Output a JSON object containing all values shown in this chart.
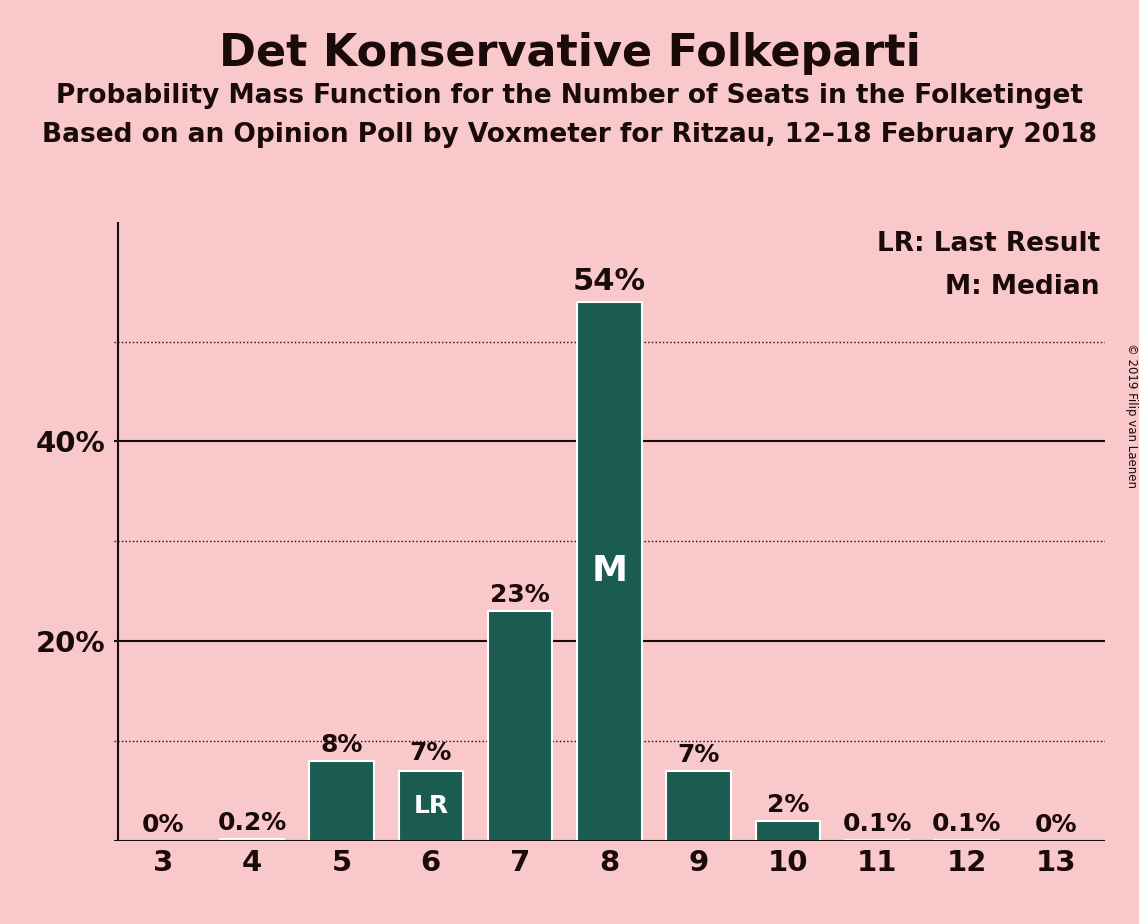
{
  "title": "Det Konservative Folkeparti",
  "subtitle1": "Probability Mass Function for the Number of Seats in the Folketinget",
  "subtitle2": "Based on an Opinion Poll by Voxmeter for Ritzau, 12–18 February 2018",
  "copyright": "© 2019 Filip van Laenen",
  "categories": [
    3,
    4,
    5,
    6,
    7,
    8,
    9,
    10,
    11,
    12,
    13
  ],
  "values": [
    0.0,
    0.2,
    8.0,
    7.0,
    23.0,
    54.0,
    7.0,
    2.0,
    0.1,
    0.1,
    0.0
  ],
  "labels": [
    "0%",
    "0.2%",
    "8%",
    "7%",
    "23%",
    "54%",
    "7%",
    "2%",
    "0.1%",
    "0.1%",
    "0%"
  ],
  "bar_color": "#1a5c50",
  "background_color": "#f9c8cb",
  "text_color": "#1a0a0a",
  "last_result_index": 3,
  "median_index": 5,
  "legend_lr": "LR: Last Result",
  "legend_m": "M: Median",
  "yticks_solid": [
    20,
    40
  ],
  "yticks_dotted": [
    10,
    30,
    50
  ],
  "ylim": [
    0,
    62
  ],
  "title_fontsize": 32,
  "subtitle_fontsize": 19,
  "label_fontsize": 18,
  "tick_fontsize": 21,
  "legend_fontsize": 19,
  "bar_width": 0.72
}
